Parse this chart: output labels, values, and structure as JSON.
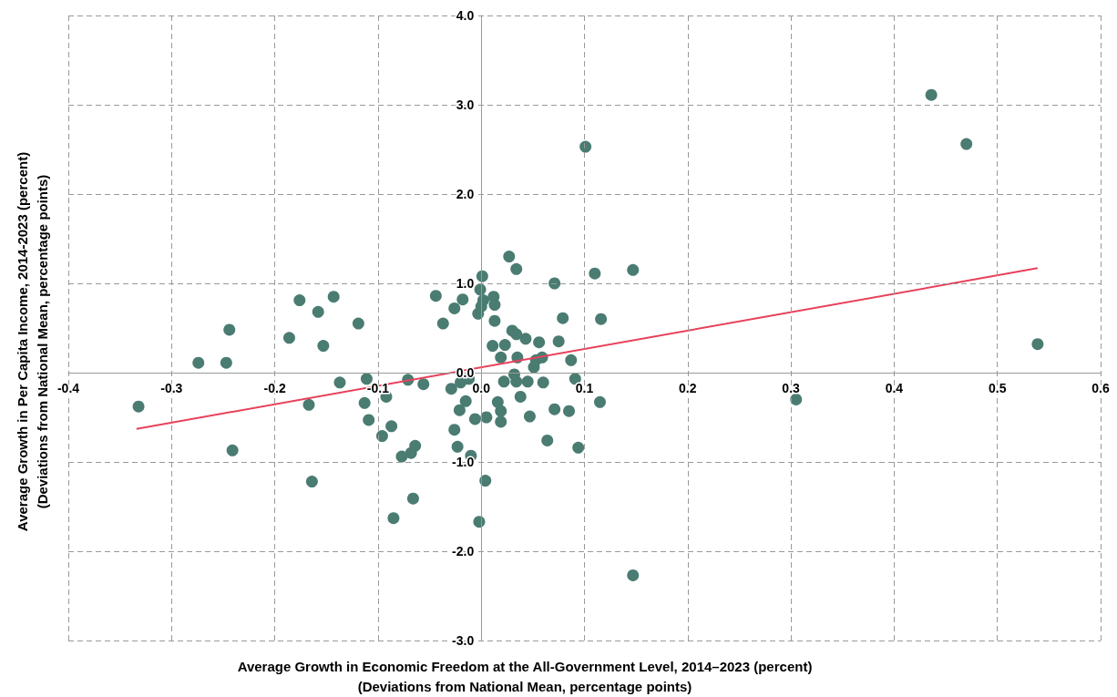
{
  "chart_data": {
    "type": "scatter",
    "xlabel": "Average Growth in Economic Freedom at the All-Government Level, 2014–2023 (percent)\n(Deviations from National Mean, percentage points)",
    "ylabel": "Average Growth in Per Capita Income, 2014-2023 (percent)\n(Deviations from National Mean, percentage points)",
    "xlim": [
      -0.4,
      0.6
    ],
    "xticks": [
      -0.4,
      -0.3,
      -0.2,
      -0.1,
      {
        "value": 0,
        "label": "0.0"
      },
      0.1,
      0.2,
      0.3,
      0.4,
      0.5,
      0.6
    ],
    "ylim": [
      -3,
      4
    ],
    "yticks": [
      {
        "value": -3,
        "label": "-3.0"
      },
      {
        "value": -2,
        "label": "-2.0"
      },
      {
        "value": -1,
        "label": "-1.0"
      },
      {
        "value": 0,
        "label": "0.0"
      },
      {
        "value": 1,
        "label": "1.0"
      },
      {
        "value": 2,
        "label": "2.0"
      },
      {
        "value": 3,
        "label": "3.0"
      },
      {
        "value": 4,
        "label": "4.0"
      }
    ],
    "grid": true,
    "marker": "circle",
    "series": [
      {
        "color": "#4a7c72",
        "x": [
          -0.332,
          -0.274,
          -0.247,
          -0.244,
          -0.241,
          -0.186,
          -0.176,
          -0.167,
          -0.164,
          -0.158,
          -0.153,
          -0.143,
          -0.137,
          -0.119,
          -0.111,
          -0.113,
          -0.109,
          -0.096,
          -0.092,
          -0.087,
          -0.085,
          -0.077,
          -0.071,
          -0.068,
          -0.064,
          -0.066,
          -0.056,
          -0.044,
          -0.037,
          -0.029,
          -0.026,
          -0.026,
          -0.023,
          -0.021,
          -0.02,
          -0.018,
          -0.015,
          -0.012,
          -0.01,
          -0.006,
          -0.003,
          -0.001,
          0.001,
          0.002,
          0.0,
          -0.002,
          0.004,
          0.005,
          0.011,
          0.012,
          0.013,
          0.013,
          0.016,
          0.019,
          0.019,
          0.019,
          0.022,
          0.023,
          0.027,
          0.03,
          0.032,
          0.034,
          0.034,
          0.034,
          0.035,
          0.038,
          0.043,
          0.045,
          0.047,
          0.051,
          0.053,
          0.056,
          0.059,
          0.06,
          0.064,
          0.071,
          0.071,
          0.075,
          0.079,
          0.085,
          0.087,
          0.091,
          0.094,
          0.101,
          0.11,
          0.115,
          0.116,
          0.147,
          0.147,
          0.305,
          0.436,
          0.47,
          0.539
        ],
        "values": [
          -0.38,
          0.11,
          0.11,
          0.48,
          -0.87,
          0.39,
          0.81,
          -0.36,
          -1.22,
          0.68,
          0.3,
          0.85,
          -0.11,
          0.55,
          -0.07,
          -0.34,
          -0.53,
          -0.71,
          -0.27,
          -0.6,
          -1.63,
          -0.94,
          -0.08,
          -0.9,
          -0.82,
          -1.41,
          -0.13,
          0.86,
          0.55,
          -0.18,
          -0.64,
          0.72,
          -0.83,
          -0.42,
          -0.11,
          0.82,
          -0.32,
          -0.07,
          -0.93,
          -0.52,
          0.66,
          0.93,
          1.08,
          0.81,
          0.74,
          -1.67,
          -1.21,
          -0.5,
          0.3,
          0.85,
          0.76,
          0.58,
          -0.33,
          -0.43,
          -0.55,
          0.17,
          -0.1,
          0.31,
          1.3,
          0.47,
          -0.02,
          1.16,
          0.43,
          -0.1,
          0.17,
          -0.27,
          0.38,
          -0.1,
          -0.49,
          0.06,
          0.14,
          0.34,
          0.17,
          -0.11,
          -0.76,
          1.0,
          -0.41,
          0.35,
          0.61,
          -0.43,
          0.14,
          -0.07,
          -0.84,
          2.53,
          1.11,
          -0.33,
          0.6,
          1.15,
          -2.27,
          -0.3,
          3.11,
          2.56,
          0.32
        ]
      },
      {
        "type": "line",
        "color": "#e8415a",
        "marker": "none",
        "x": [
          -0.334,
          0.539
        ],
        "values": [
          -0.63,
          1.17
        ]
      }
    ]
  }
}
